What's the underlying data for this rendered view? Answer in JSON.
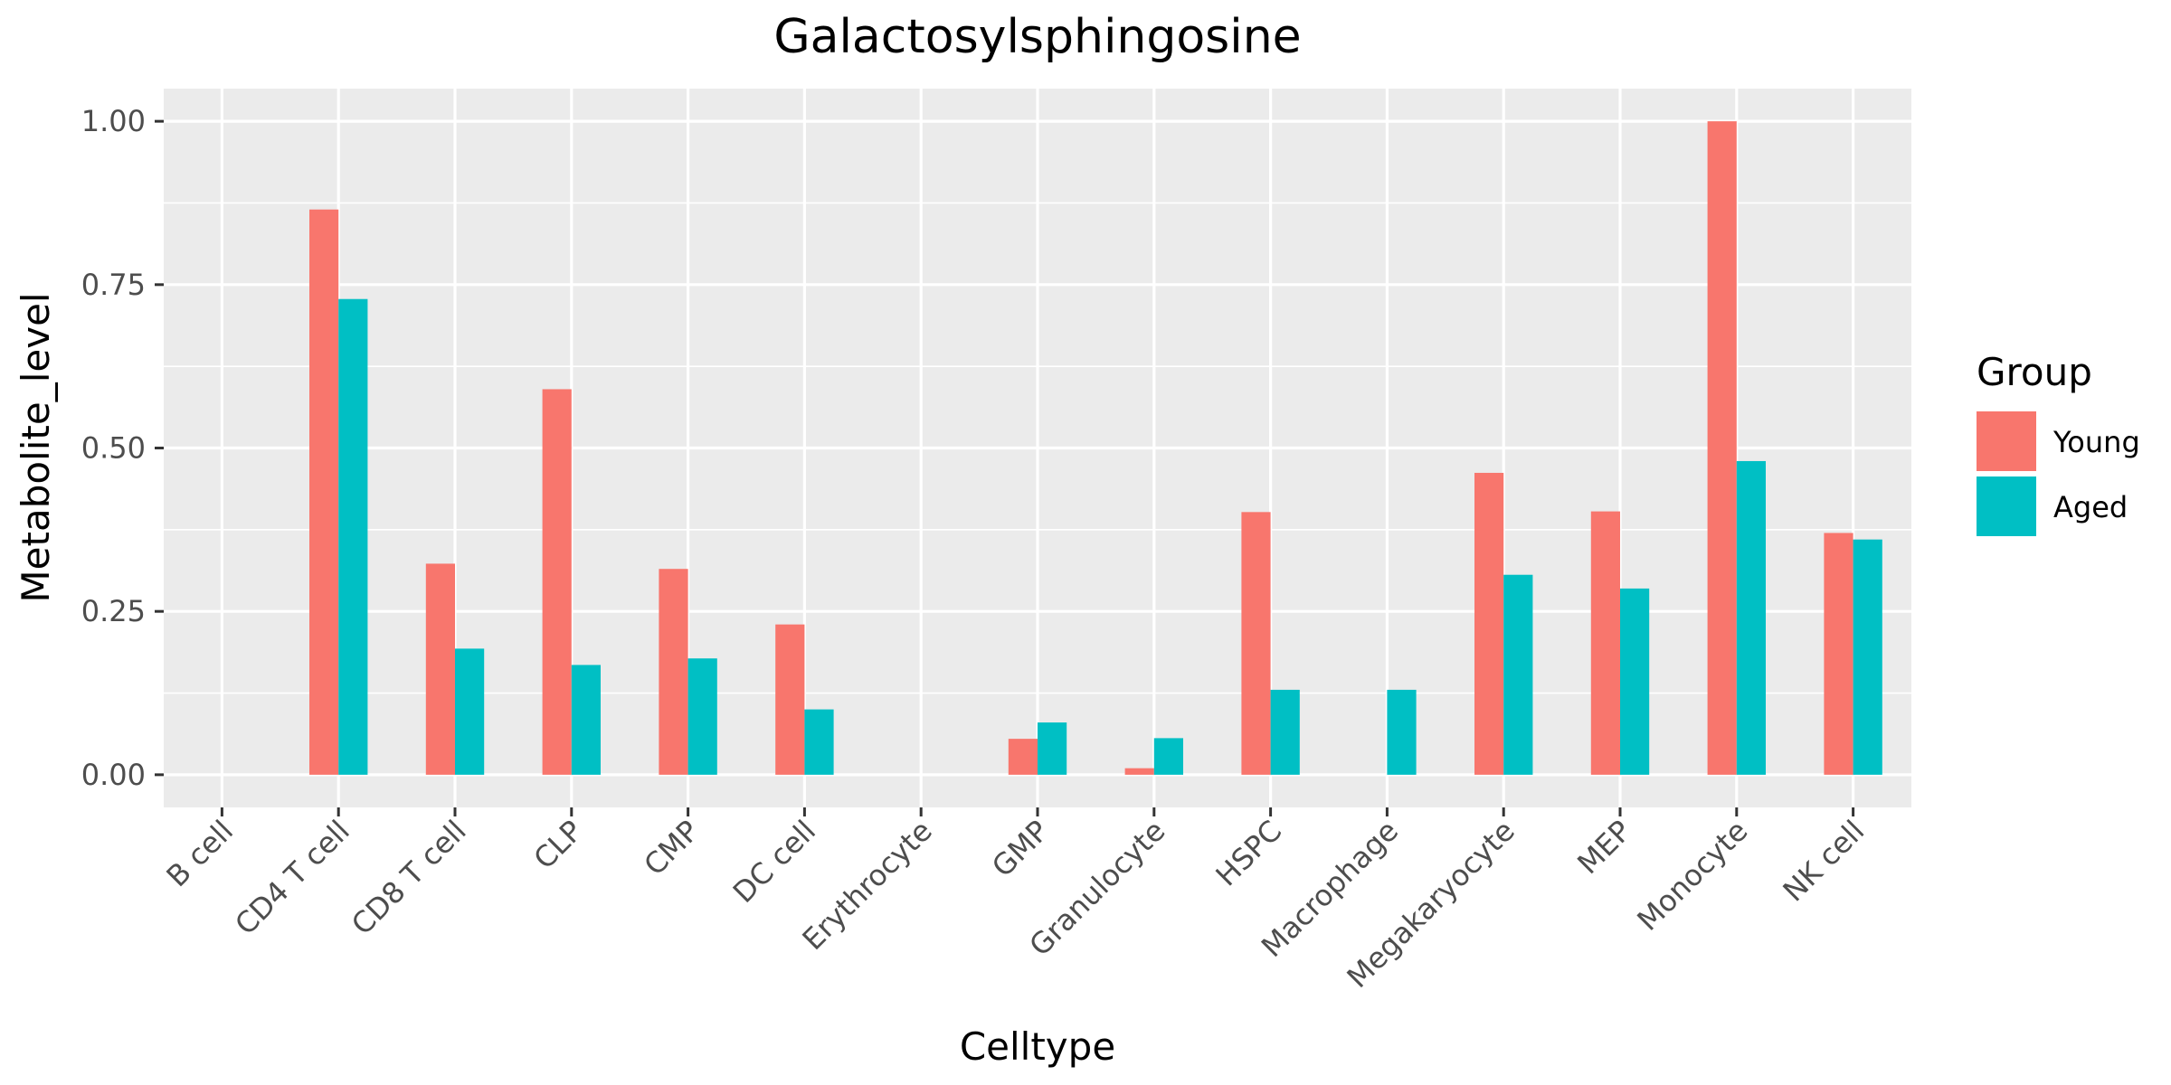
{
  "chart_data": {
    "type": "bar",
    "title": "Galactosylsphingosine",
    "xlabel": "Celltype",
    "ylabel": "Metabolite_level",
    "categories": [
      "B cell",
      "CD4 T cell",
      "CD8 T cell",
      "CLP",
      "CMP",
      "DC cell",
      "Erythrocyte",
      "GMP",
      "Granulocyte",
      "HSPC",
      "Macrophage",
      "Megakaryocyte",
      "MEP",
      "Monocyte",
      "NK cell"
    ],
    "series": [
      {
        "name": "Young",
        "color": "#F8766D",
        "values": [
          0,
          0.865,
          0.323,
          0.59,
          0.315,
          0.23,
          0,
          0.055,
          0.01,
          0.402,
          0,
          0.462,
          0.403,
          1.0,
          0.37
        ]
      },
      {
        "name": "Aged",
        "color": "#00BFC4",
        "values": [
          0,
          0.728,
          0.193,
          0.168,
          0.178,
          0.1,
          0,
          0.08,
          0.056,
          0.13,
          0.13,
          0.306,
          0.285,
          0.48,
          0.36
        ]
      }
    ],
    "ylim": [
      -0.05,
      1.05
    ],
    "yticks": [
      0,
      0.25,
      0.5,
      0.75,
      1.0
    ],
    "ytick_labels": [
      "0.00",
      "0.25",
      "0.50",
      "0.75",
      "1.00"
    ],
    "grid": true,
    "legend": {
      "title": "Group",
      "position": "right"
    },
    "panel_background": "#EBEBEB"
  }
}
